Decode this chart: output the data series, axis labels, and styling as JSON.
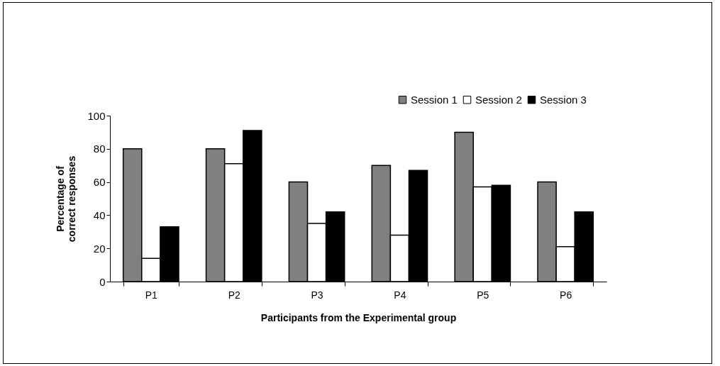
{
  "chart_data": {
    "type": "bar",
    "xlabel": "Participants from the Experimental group",
    "ylabel": "Percentage of correct responses",
    "categories": [
      "P1",
      "P2",
      "P3",
      "P4",
      "P5",
      "P6"
    ],
    "series": [
      {
        "name": "Session 1",
        "color": "#808080",
        "values": [
          80,
          80,
          60,
          70,
          90,
          60
        ]
      },
      {
        "name": "Session 2",
        "color": "#ffffff",
        "values": [
          14,
          71,
          35,
          28,
          57,
          21
        ]
      },
      {
        "name": "Session 3",
        "color": "#000000",
        "values": [
          33,
          91,
          42,
          67,
          58,
          42
        ]
      }
    ],
    "ylim": [
      0,
      100
    ],
    "yticks": [
      0,
      20,
      40,
      60,
      80,
      100
    ],
    "grid": false,
    "legend": "top right"
  }
}
